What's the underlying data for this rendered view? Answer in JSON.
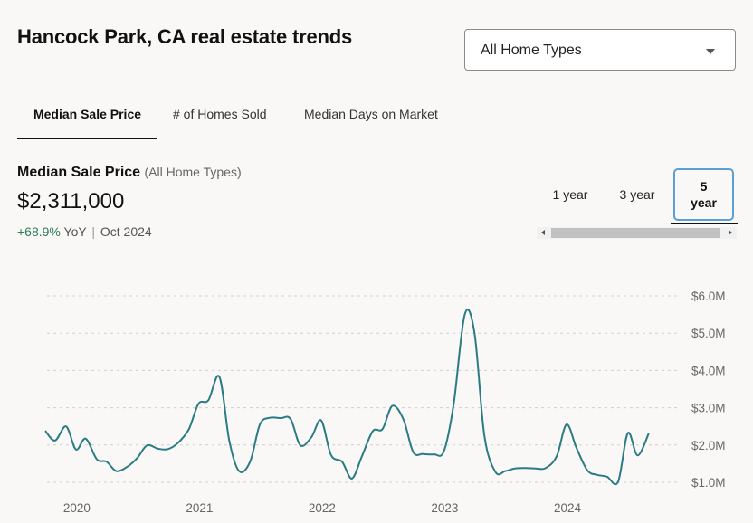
{
  "header": {
    "title": "Hancock Park, CA real estate trends",
    "home_type_select": "All Home Types"
  },
  "tabs": [
    {
      "label": "Median Sale Price",
      "active": true
    },
    {
      "label": "# of Homes Sold",
      "active": false
    },
    {
      "label": "Median Days on Market",
      "active": false
    }
  ],
  "metric": {
    "name": "Median Sale Price",
    "filter": "(All Home Types)",
    "value": "$2,311,000",
    "change": "+68.9%",
    "change_suffix": "YoY",
    "period": "Oct 2024"
  },
  "range": {
    "options": [
      "1 year",
      "3 year",
      "5 year"
    ],
    "five_line1": "5",
    "five_line2": "year",
    "selected": "5 year"
  },
  "colors": {
    "line": "#2a7b83",
    "positive": "#2e7d5b",
    "accent": "#5aa0d6"
  },
  "chart_data": {
    "type": "line",
    "title": "",
    "xlabel": "",
    "ylabel": "",
    "x_ticks": [
      "2020",
      "2021",
      "2022",
      "2023",
      "2024"
    ],
    "y_ticks": [
      "$1.0M",
      "$2.0M",
      "$3.0M",
      "$4.0M",
      "$5.0M",
      "$6.0M"
    ],
    "xlim": [
      2019.75,
      2024.93
    ],
    "ylim": [
      1.0,
      6.0
    ],
    "grid": true,
    "series": [
      {
        "name": "",
        "points": [
          [
            2019.75,
            2.38
          ],
          [
            2019.83,
            2.12
          ],
          [
            2019.92,
            2.5
          ],
          [
            2020.0,
            1.88
          ],
          [
            2020.08,
            2.17
          ],
          [
            2020.17,
            1.62
          ],
          [
            2020.25,
            1.55
          ],
          [
            2020.33,
            1.3
          ],
          [
            2020.42,
            1.42
          ],
          [
            2020.5,
            1.65
          ],
          [
            2020.58,
            1.99
          ],
          [
            2020.67,
            1.9
          ],
          [
            2020.75,
            1.89
          ],
          [
            2020.83,
            2.05
          ],
          [
            2020.92,
            2.42
          ],
          [
            2021.0,
            3.11
          ],
          [
            2021.08,
            3.2
          ],
          [
            2021.17,
            3.83
          ],
          [
            2021.25,
            2.12
          ],
          [
            2021.33,
            1.3
          ],
          [
            2021.42,
            1.55
          ],
          [
            2021.5,
            2.55
          ],
          [
            2021.58,
            2.73
          ],
          [
            2021.67,
            2.72
          ],
          [
            2021.75,
            2.7
          ],
          [
            2021.83,
            1.99
          ],
          [
            2021.92,
            2.21
          ],
          [
            2022.0,
            2.66
          ],
          [
            2022.08,
            1.73
          ],
          [
            2022.17,
            1.55
          ],
          [
            2022.25,
            1.1
          ],
          [
            2022.33,
            1.68
          ],
          [
            2022.42,
            2.37
          ],
          [
            2022.5,
            2.43
          ],
          [
            2022.58,
            3.05
          ],
          [
            2022.67,
            2.69
          ],
          [
            2022.75,
            1.81
          ],
          [
            2022.83,
            1.76
          ],
          [
            2022.92,
            1.75
          ],
          [
            2023.0,
            1.83
          ],
          [
            2023.08,
            3.1
          ],
          [
            2023.17,
            5.5
          ],
          [
            2023.25,
            5.0
          ],
          [
            2023.33,
            2.25
          ],
          [
            2023.42,
            1.28
          ],
          [
            2023.5,
            1.3
          ],
          [
            2023.58,
            1.37
          ],
          [
            2023.67,
            1.38
          ],
          [
            2023.75,
            1.37
          ],
          [
            2023.83,
            1.38
          ],
          [
            2023.92,
            1.7
          ],
          [
            2024.0,
            2.55
          ],
          [
            2024.08,
            1.93
          ],
          [
            2024.17,
            1.32
          ],
          [
            2024.25,
            1.2
          ],
          [
            2024.33,
            1.15
          ],
          [
            2024.42,
            1.01
          ],
          [
            2024.5,
            2.32
          ],
          [
            2024.58,
            1.72
          ],
          [
            2024.67,
            2.31
          ]
        ]
      }
    ]
  }
}
